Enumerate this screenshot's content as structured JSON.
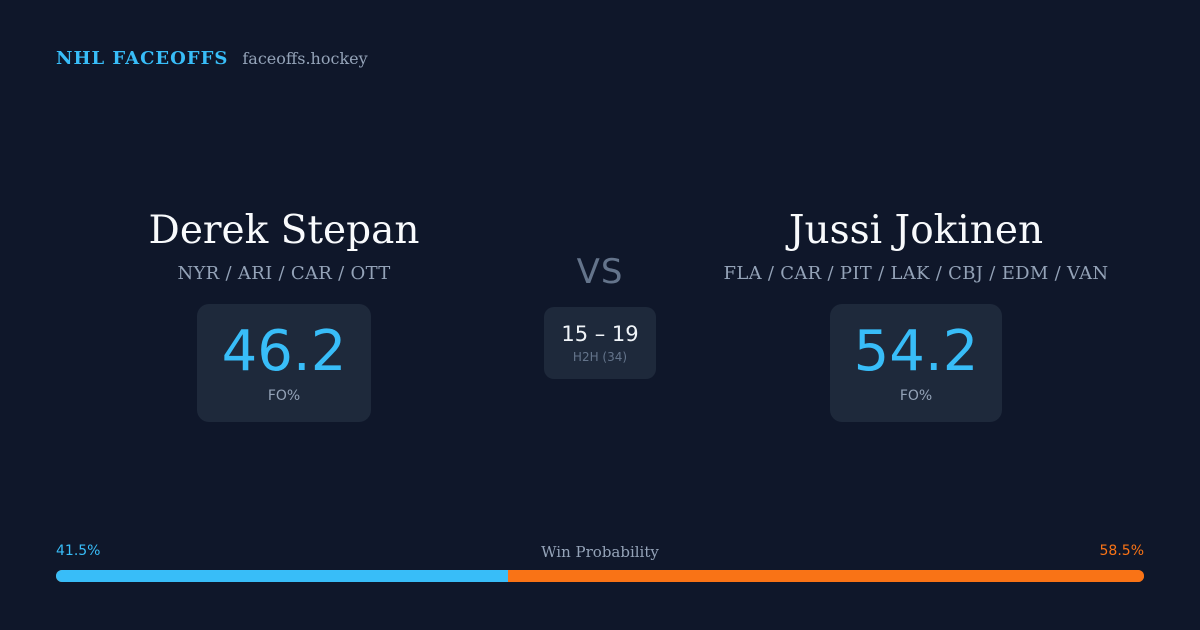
{
  "brand": {
    "name": "NHL FACEOFFS",
    "site": "faceoffs.hockey"
  },
  "player_left": {
    "name": "Derek Stepan",
    "teams": "NYR / ARI / CAR / OTT",
    "fo_value": "46.2",
    "fo_label": "FO%"
  },
  "versus": {
    "label": "VS",
    "h2h_score": "15 – 19",
    "h2h_label": "H2H (34)"
  },
  "player_right": {
    "name": "Jussi Jokinen",
    "teams": "FLA / CAR / PIT / LAK / CBJ / EDM / VAN",
    "fo_value": "54.2",
    "fo_label": "FO%"
  },
  "win_probability": {
    "title": "Win Probability",
    "left_label": "41.5%",
    "right_label": "58.5%",
    "left_fraction": 0.415,
    "left_color": "#38bdf8",
    "right_color": "#f97316"
  },
  "colors": {
    "background": "#0f172a",
    "card": "#1e293b",
    "accent": "#38bdf8",
    "accent_secondary": "#f97316"
  }
}
